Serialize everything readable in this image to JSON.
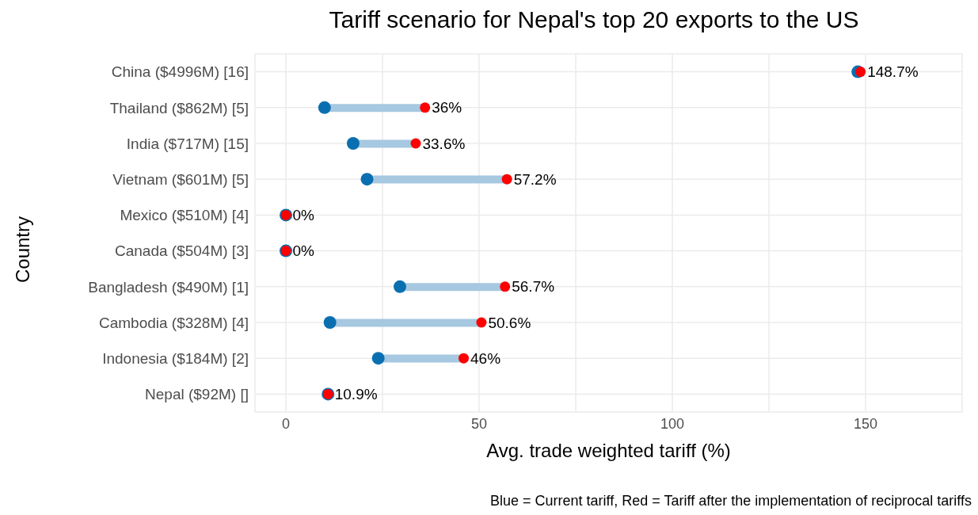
{
  "chart_data": {
    "type": "scatter",
    "orientation": "horizontal",
    "title": "Tariff scenario for Nepal's top 20 exports to the US",
    "xlabel": "Avg. trade weighted tariff (%)",
    "ylabel": "Country",
    "annotations": [
      "Blue = Current tariff, Red = Tariff after the implementation of reciprocal tariffs"
    ],
    "categories": [
      "China ($4996M) [16]",
      "Thailand ($862M) [5]",
      "India ($717M) [15]",
      "Vietnam ($601M) [5]",
      "Mexico ($510M) [4]",
      "Canada ($504M) [3]",
      "Bangladesh ($490M) [1]",
      "Cambodia ($328M) [4]",
      "Indonesia ($184M) [2]",
      "Nepal ($92M) []"
    ],
    "series": [
      {
        "type": "bar",
        "color": "#a6c8e0",
        "base": [
          null,
          10,
          17.4,
          21,
          null,
          null,
          29.5,
          11.4,
          23.9,
          null
        ],
        "values": [
          null,
          26,
          16.2,
          36.2,
          null,
          null,
          27.2,
          39.2,
          22.1,
          null
        ]
      },
      {
        "color": "#0a6fb0",
        "values": [
          148,
          10,
          17.4,
          21,
          0,
          0,
          29.5,
          11.4,
          23.9,
          10.9
        ]
      },
      {
        "color": "#ff0000",
        "values": [
          148.7,
          36,
          33.6,
          57.2,
          0,
          0,
          56.7,
          50.6,
          46,
          10.9
        ],
        "value_labels": [
          "148.7%",
          "36%",
          "33.6%",
          "57.2%",
          "0%",
          "0%",
          "56.7%",
          "50.6%",
          "46%",
          "10.9%"
        ]
      }
    ],
    "marker": "circle",
    "grid": true,
    "xlim": [
      -8,
      175
    ],
    "xticks": [
      0,
      {
        "value": 25,
        "label": null
      },
      50,
      {
        "value": 75,
        "label": null
      },
      100,
      {
        "value": 125,
        "label": null
      },
      150,
      {
        "value": 175,
        "label": null
      }
    ]
  }
}
